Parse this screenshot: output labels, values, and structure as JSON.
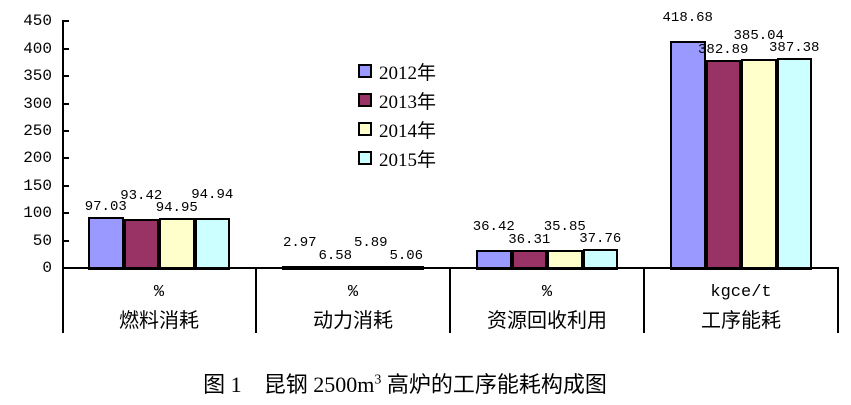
{
  "chart_data": {
    "type": "bar",
    "title": "图 1 昆钢 2500m3 高炉的工序能耗构成图",
    "y_axis": {
      "min": 0,
      "max": 450,
      "step": 50,
      "tick_labels": [
        "450",
        "400",
        "350",
        "300",
        "250",
        "200",
        "150",
        "100",
        "50",
        "0"
      ],
      "grid": false
    },
    "categories": [
      "燃料消耗",
      "动力消耗",
      "资源回收利用",
      "工序能耗"
    ],
    "groups": [
      {
        "unit": "%",
        "name": "燃料消耗"
      },
      {
        "unit": "%",
        "name": "动力消耗"
      },
      {
        "unit": "%",
        "name": "资源回收利用"
      },
      {
        "unit": "kgce/t",
        "name": "工序能耗"
      }
    ],
    "series": [
      {
        "name": "2012年",
        "color": "#9999FF",
        "values": [
          97.03,
          2.97,
          36.42,
          418.68
        ]
      },
      {
        "name": "2013年",
        "color": "#993366",
        "values": [
          93.42,
          6.58,
          36.31,
          382.89
        ]
      },
      {
        "name": "2014年",
        "color": "#FFFFCC",
        "values": [
          94.95,
          5.89,
          35.85,
          385.04
        ]
      },
      {
        "name": "2015年",
        "color": "#CCFFFF",
        "values": [
          94.94,
          5.06,
          37.76,
          387.38
        ]
      }
    ],
    "legend": {
      "position": "upper-middle-inside"
    },
    "caption": {
      "fig_label": "图 1",
      "before_sup": "昆钢 2500m",
      "sup": "3",
      "after_sup": " 高炉的工序能耗构成图"
    }
  },
  "colors": {
    "background": "#FFFFFF",
    "axis": "#000000",
    "bar_border": "#000000",
    "text": "#000000"
  }
}
